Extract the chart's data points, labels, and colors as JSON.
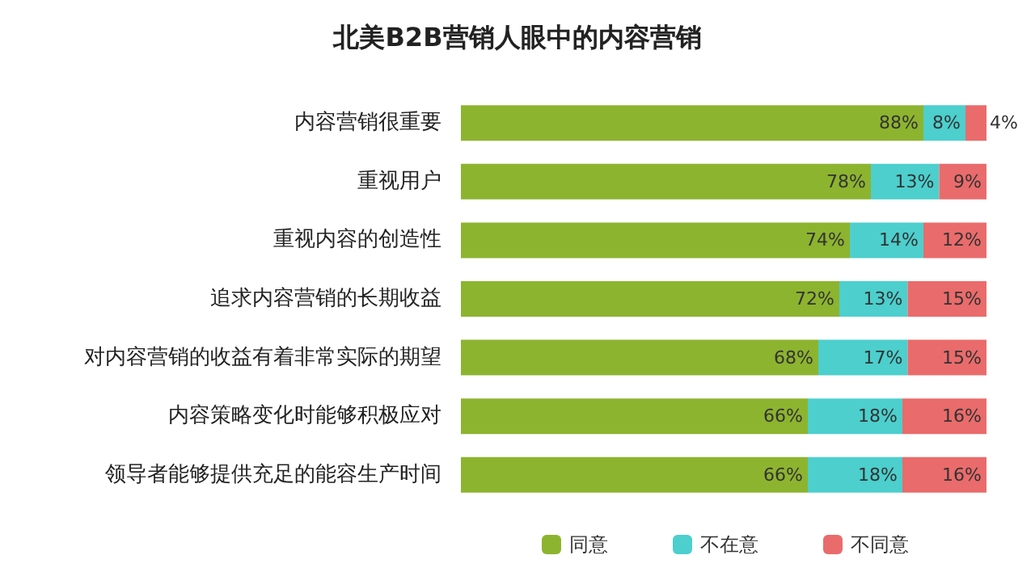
{
  "chart_data": {
    "type": "bar",
    "title": "北美B2B营销人眼中的内容营销",
    "orientation": "horizontal",
    "stacked": true,
    "legend": "bottom",
    "tick_labels": "y",
    "grid": false,
    "xlim": [
      0,
      100
    ],
    "categories": [
      "内容营销很重要",
      "重视用户",
      "重视内容的创造性",
      "追求内容营销的长期收益",
      "对内容营销的收益有着非常实际的期望",
      "内容策略变化时能够积极应对",
      "领导者能够提供充足的能容生产时间"
    ],
    "series": [
      {
        "name": "同意",
        "color": "#8db42f",
        "values": [
          88,
          78,
          74,
          72,
          68,
          66,
          66
        ],
        "value_labels": [
          "88%",
          "78%",
          "74%",
          "72%",
          "68%",
          "66%",
          "66%"
        ]
      },
      {
        "name": "不在意",
        "color": "#4ccfcd",
        "values": [
          8,
          13,
          14,
          13,
          17,
          18,
          18
        ],
        "value_labels": [
          "8%",
          "13%",
          "14%",
          "13%",
          "17%",
          "18%",
          "18%"
        ]
      },
      {
        "name": "不同意",
        "color": "#ea6b6b",
        "values": [
          4,
          9,
          12,
          15,
          15,
          16,
          16
        ],
        "value_labels": [
          "4%",
          "9%",
          "12%",
          "15%",
          "15%",
          "16%",
          "16%"
        ]
      }
    ]
  }
}
